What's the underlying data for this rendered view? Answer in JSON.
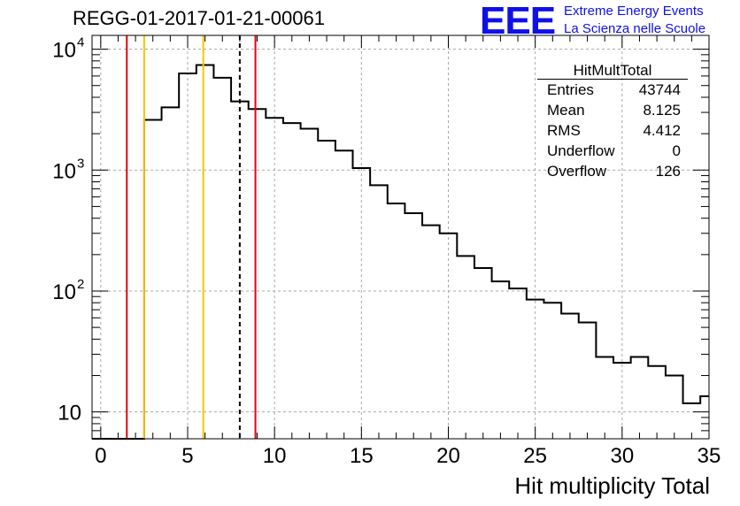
{
  "title": "REGG-01-2017-01-21-00061",
  "logo": {
    "mark": "EEE",
    "line1": "Extreme Energy Events",
    "line2": "La Scienza nelle Scuole",
    "color": "#1010e8"
  },
  "stats": {
    "name": "HitMultTotal",
    "rows": [
      {
        "label": "Entries",
        "value": "43744"
      },
      {
        "label": "Mean",
        "value": "8.125"
      },
      {
        "label": "RMS",
        "value": "4.412"
      },
      {
        "label": "Underflow",
        "value": "0"
      },
      {
        "label": "Overflow",
        "value": "126"
      }
    ]
  },
  "chart_data": {
    "type": "histogram",
    "title": "REGG-01-2017-01-21-00061",
    "xlabel": "Hit multiplicity Total",
    "ylabel": "",
    "xlim": [
      -0.5,
      35
    ],
    "ylim": [
      6,
      13000
    ],
    "yscale": "log",
    "grid": true,
    "x_ticks": [
      0,
      5,
      10,
      15,
      20,
      25,
      30,
      35
    ],
    "x_tick_labels": [
      "0",
      "5",
      "10",
      "15",
      "20",
      "25",
      "30",
      "35"
    ],
    "y_tick_labels": [
      {
        "value": 10,
        "base": "10",
        "exp": ""
      },
      {
        "value": 100,
        "base": "10",
        "exp": "2"
      },
      {
        "value": 1000,
        "base": "10",
        "exp": "3"
      },
      {
        "value": 10000,
        "base": "10",
        "exp": "4"
      }
    ],
    "bins": {
      "edges_start": -0.5,
      "width": 1,
      "counts": [
        0,
        0,
        0,
        2600,
        3300,
        6300,
        7400,
        5800,
        3700,
        3200,
        2700,
        2450,
        2200,
        1750,
        1450,
        1040,
        750,
        530,
        440,
        350,
        300,
        195,
        155,
        120,
        105,
        85,
        80,
        65,
        55,
        28.5,
        25.5,
        28.5,
        24,
        20,
        11.8,
        13.5
      ]
    },
    "vertical_lines": [
      {
        "x": 1.5,
        "color": "#e8000b",
        "style": "solid"
      },
      {
        "x": 2.5,
        "color": "#f5c400",
        "style": "solid"
      },
      {
        "x": 5.9,
        "color": "#f5c400",
        "style": "solid"
      },
      {
        "x": 8.0,
        "color": "#000000",
        "style": "dashed"
      },
      {
        "x": 8.9,
        "color": "#e8000b",
        "style": "solid"
      }
    ]
  }
}
